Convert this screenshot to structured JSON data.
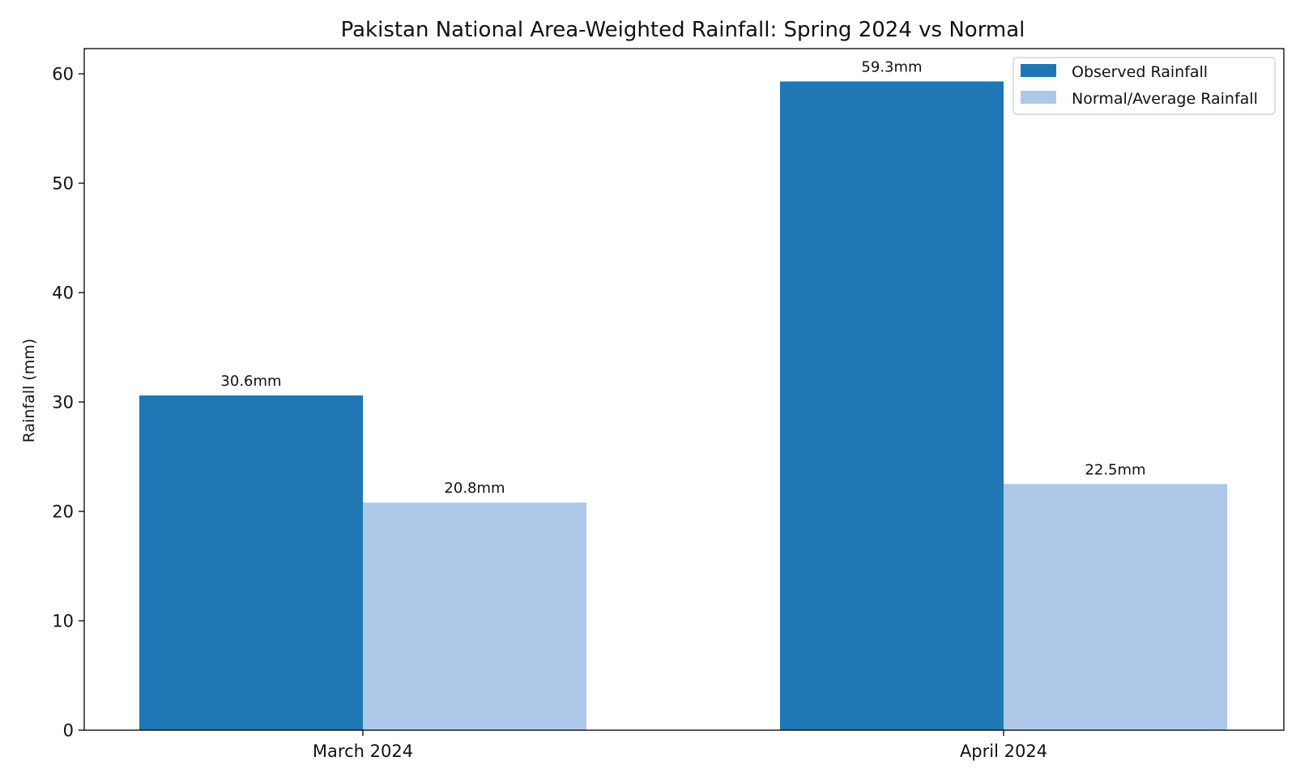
{
  "chart_data": {
    "type": "bar",
    "title": "Pakistan National Area-Weighted Rainfall: Spring 2024 vs Normal",
    "xlabel": "",
    "ylabel": "Rainfall (mm)",
    "categories": [
      "March 2024",
      "April 2024"
    ],
    "series": [
      {
        "name": "Observed Rainfall",
        "values": [
          30.6,
          59.3
        ],
        "labels": [
          "30.6mm",
          "59.3mm"
        ],
        "color": "#1f77b4"
      },
      {
        "name": "Normal/Average Rainfall",
        "values": [
          20.8,
          22.5
        ],
        "labels": [
          "20.8mm",
          "22.5mm"
        ],
        "color": "#aec7e8"
      }
    ],
    "ylim": [
      0,
      62.3
    ],
    "yticks": [
      0,
      10,
      20,
      30,
      40,
      50,
      60
    ],
    "ytick_labels": [
      "0",
      "10",
      "20",
      "30",
      "40",
      "50",
      "60"
    ],
    "grid": false,
    "legend_position": "top-right"
  }
}
